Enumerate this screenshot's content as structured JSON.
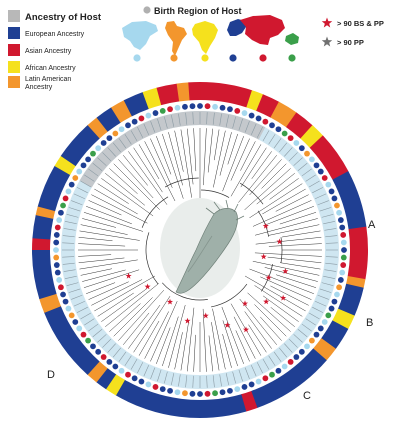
{
  "legend": {
    "ancestry_title": "Ancestry of Host",
    "ancestry_items": [
      {
        "label": "European Ancestry",
        "color": "#1f3f93"
      },
      {
        "label": "Asian Ancestry",
        "color": "#d0182f"
      },
      {
        "label": "African Ancestry",
        "color": "#f5e11d"
      },
      {
        "label": "Latin American Ancestry",
        "color": "#f3962d"
      }
    ],
    "title_swatch_color": "#b8b8b8",
    "birth_title": "Birth Region of Host",
    "birth_dot_color": "#b0b0b0",
    "support_items": [
      {
        "label": "> 90 BS & PP",
        "color": "#d0182f"
      },
      {
        "label": "> 90 PP",
        "color": "#707070"
      }
    ]
  },
  "clade_labels": [
    "A",
    "B",
    "C",
    "D"
  ],
  "regions": [
    {
      "name": "North America",
      "color": "#a6d8ee",
      "icon": "north-america-map-icon"
    },
    {
      "name": "Latin America",
      "color": "#f3962d",
      "icon": "latin-america-map-icon"
    },
    {
      "name": "Africa",
      "color": "#f5e11d",
      "icon": "africa-map-icon"
    },
    {
      "name": "Europe",
      "color": "#1f3f93",
      "icon": "europe-map-icon"
    },
    {
      "name": "Asia",
      "color": "#d0182f",
      "icon": "asia-map-icon"
    },
    {
      "name": "Oceania",
      "color": "#3a9f4a",
      "icon": "oceania-map-icon"
    }
  ],
  "ancestry_ring": [
    {
      "from": 0,
      "to": 18,
      "ancestry": "Asian"
    },
    {
      "from": 18,
      "to": 22,
      "ancestry": "African"
    },
    {
      "from": 22,
      "to": 28,
      "ancestry": "Asian"
    },
    {
      "from": 28,
      "to": 35,
      "ancestry": "Latin American"
    },
    {
      "from": 35,
      "to": 42,
      "ancestry": "Asian"
    },
    {
      "from": 42,
      "to": 47,
      "ancestry": "African"
    },
    {
      "from": 47,
      "to": 62,
      "ancestry": "Asian"
    },
    {
      "from": 62,
      "to": 82,
      "ancestry": "European"
    },
    {
      "from": 82,
      "to": 100,
      "ancestry": "Asian"
    },
    {
      "from": 100,
      "to": 103,
      "ancestry": "Latin American"
    },
    {
      "from": 103,
      "to": 113,
      "ancestry": "European"
    },
    {
      "from": 113,
      "to": 118,
      "ancestry": "African"
    },
    {
      "from": 118,
      "to": 126,
      "ancestry": "European"
    },
    {
      "from": 126,
      "to": 131,
      "ancestry": "Latin American"
    },
    {
      "from": 131,
      "to": 160,
      "ancestry": "European"
    },
    {
      "from": 160,
      "to": 164,
      "ancestry": "Asian"
    },
    {
      "from": 164,
      "to": 210,
      "ancestry": "European"
    },
    {
      "from": 210,
      "to": 214,
      "ancestry": "African"
    },
    {
      "from": 214,
      "to": 218,
      "ancestry": "European"
    },
    {
      "from": 218,
      "to": 222,
      "ancestry": "Latin American"
    },
    {
      "from": 222,
      "to": 248,
      "ancestry": "European"
    },
    {
      "from": 248,
      "to": 253,
      "ancestry": "Latin American"
    },
    {
      "from": 253,
      "to": 270,
      "ancestry": "European"
    },
    {
      "from": 270,
      "to": 274,
      "ancestry": "Asian"
    },
    {
      "from": 274,
      "to": 282,
      "ancestry": "European"
    },
    {
      "from": 282,
      "to": 285,
      "ancestry": "Latin American"
    },
    {
      "from": 285,
      "to": 300,
      "ancestry": "European"
    },
    {
      "from": 300,
      "to": 304,
      "ancestry": "African"
    },
    {
      "from": 304,
      "to": 318,
      "ancestry": "European"
    },
    {
      "from": 318,
      "to": 322,
      "ancestry": "Latin American"
    },
    {
      "from": 322,
      "to": 328,
      "ancestry": "European"
    },
    {
      "from": 328,
      "to": 333,
      "ancestry": "Latin American"
    },
    {
      "from": 333,
      "to": 340,
      "ancestry": "European"
    },
    {
      "from": 340,
      "to": 345,
      "ancestry": "African"
    },
    {
      "from": 345,
      "to": 352,
      "ancestry": "Asian"
    },
    {
      "from": 352,
      "to": 356,
      "ancestry": "Latin American"
    },
    {
      "from": 356,
      "to": 360,
      "ancestry": "Asian"
    }
  ]
}
